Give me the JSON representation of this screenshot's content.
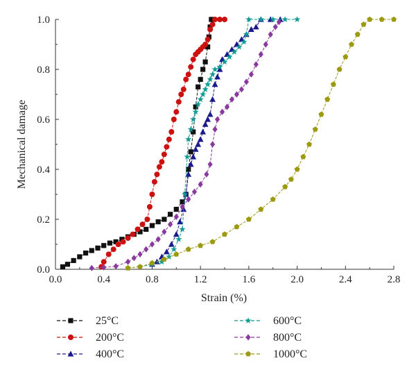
{
  "chart_data": {
    "type": "scatter",
    "xlabel": "Strain (%)",
    "ylabel": "Mechanical damage",
    "xlim": [
      0,
      2.8
    ],
    "ylim": [
      0,
      1.0
    ],
    "x_ticks": [
      "0.0",
      "0.4",
      "0.8",
      "1.2",
      "1.6",
      "2.0",
      "2.4",
      "2.8"
    ],
    "y_ticks": [
      "0.0",
      "0.2",
      "0.4",
      "0.6",
      "0.8",
      "1.0"
    ],
    "grid": false,
    "legend_position": "bottom",
    "series": [
      {
        "name": "25°C",
        "color": "#111111",
        "marker": "square",
        "points": [
          [
            0.06,
            0.01
          ],
          [
            0.1,
            0.02
          ],
          [
            0.15,
            0.035
          ],
          [
            0.2,
            0.05
          ],
          [
            0.25,
            0.065
          ],
          [
            0.3,
            0.075
          ],
          [
            0.35,
            0.085
          ],
          [
            0.4,
            0.095
          ],
          [
            0.45,
            0.105
          ],
          [
            0.5,
            0.11
          ],
          [
            0.55,
            0.12
          ],
          [
            0.6,
            0.13
          ],
          [
            0.65,
            0.14
          ],
          [
            0.7,
            0.15
          ],
          [
            0.75,
            0.16
          ],
          [
            0.8,
            0.175
          ],
          [
            0.85,
            0.19
          ],
          [
            0.9,
            0.2
          ],
          [
            0.95,
            0.22
          ],
          [
            1.0,
            0.24
          ],
          [
            1.05,
            0.27
          ],
          [
            1.08,
            0.3
          ],
          [
            1.1,
            0.4
          ],
          [
            1.12,
            0.47
          ],
          [
            1.14,
            0.55
          ],
          [
            1.16,
            0.65
          ],
          [
            1.18,
            0.73
          ],
          [
            1.2,
            0.76
          ],
          [
            1.22,
            0.8
          ],
          [
            1.24,
            0.83
          ],
          [
            1.26,
            0.89
          ],
          [
            1.27,
            0.93
          ],
          [
            1.28,
            0.97
          ],
          [
            1.29,
            1.0
          ],
          [
            1.3,
            1.0
          ]
        ]
      },
      {
        "name": "200°C",
        "color": "#cc1111",
        "marker": "circle",
        "points": [
          [
            0.38,
            0.01
          ],
          [
            0.4,
            0.03
          ],
          [
            0.44,
            0.06
          ],
          [
            0.48,
            0.08
          ],
          [
            0.52,
            0.1
          ],
          [
            0.56,
            0.11
          ],
          [
            0.6,
            0.125
          ],
          [
            0.64,
            0.14
          ],
          [
            0.68,
            0.16
          ],
          [
            0.72,
            0.18
          ],
          [
            0.76,
            0.2
          ],
          [
            0.78,
            0.25
          ],
          [
            0.8,
            0.3
          ],
          [
            0.82,
            0.35
          ],
          [
            0.84,
            0.38
          ],
          [
            0.86,
            0.41
          ],
          [
            0.88,
            0.43
          ],
          [
            0.9,
            0.46
          ],
          [
            0.92,
            0.49
          ],
          [
            0.94,
            0.52
          ],
          [
            0.96,
            0.55
          ],
          [
            0.98,
            0.6
          ],
          [
            1.0,
            0.63
          ],
          [
            1.02,
            0.67
          ],
          [
            1.04,
            0.7
          ],
          [
            1.06,
            0.72
          ],
          [
            1.08,
            0.76
          ],
          [
            1.1,
            0.78
          ],
          [
            1.12,
            0.81
          ],
          [
            1.14,
            0.84
          ],
          [
            1.16,
            0.86
          ],
          [
            1.18,
            0.87
          ],
          [
            1.2,
            0.88
          ],
          [
            1.22,
            0.89
          ],
          [
            1.24,
            0.9
          ],
          [
            1.26,
            0.92
          ],
          [
            1.28,
            0.96
          ],
          [
            1.3,
            0.98
          ],
          [
            1.32,
            1.0
          ],
          [
            1.36,
            1.0
          ],
          [
            1.4,
            1.0
          ]
        ]
      },
      {
        "name": "400°C",
        "color": "#1a1a8c",
        "marker": "triangle",
        "points": [
          [
            0.8,
            0.02
          ],
          [
            0.84,
            0.03
          ],
          [
            0.88,
            0.05
          ],
          [
            0.92,
            0.07
          ],
          [
            0.96,
            0.1
          ],
          [
            1.0,
            0.14
          ],
          [
            1.03,
            0.19
          ],
          [
            1.06,
            0.24
          ],
          [
            1.08,
            0.3
          ],
          [
            1.1,
            0.38
          ],
          [
            1.12,
            0.42
          ],
          [
            1.14,
            0.45
          ],
          [
            1.16,
            0.48
          ],
          [
            1.18,
            0.5
          ],
          [
            1.2,
            0.52
          ],
          [
            1.22,
            0.55
          ],
          [
            1.24,
            0.58
          ],
          [
            1.26,
            0.6
          ],
          [
            1.28,
            0.62
          ],
          [
            1.3,
            0.68
          ],
          [
            1.32,
            0.74
          ],
          [
            1.34,
            0.77
          ],
          [
            1.36,
            0.8
          ],
          [
            1.38,
            0.84
          ],
          [
            1.42,
            0.86
          ],
          [
            1.46,
            0.88
          ],
          [
            1.5,
            0.9
          ],
          [
            1.54,
            0.92
          ],
          [
            1.58,
            0.94
          ],
          [
            1.62,
            0.96
          ],
          [
            1.66,
            0.97
          ],
          [
            1.7,
            1.0
          ],
          [
            1.78,
            1.0
          ],
          [
            1.86,
            1.0
          ]
        ]
      },
      {
        "name": "600°C",
        "color": "#0f9a94",
        "marker": "star",
        "points": [
          [
            0.6,
            0.005
          ],
          [
            0.7,
            0.01
          ],
          [
            0.8,
            0.02
          ],
          [
            0.88,
            0.03
          ],
          [
            0.94,
            0.05
          ],
          [
            0.98,
            0.08
          ],
          [
            1.02,
            0.12
          ],
          [
            1.05,
            0.16
          ],
          [
            1.07,
            0.3
          ],
          [
            1.09,
            0.45
          ],
          [
            1.1,
            0.52
          ],
          [
            1.12,
            0.56
          ],
          [
            1.14,
            0.6
          ],
          [
            1.16,
            0.63
          ],
          [
            1.18,
            0.66
          ],
          [
            1.2,
            0.68
          ],
          [
            1.22,
            0.7
          ],
          [
            1.24,
            0.72
          ],
          [
            1.26,
            0.74
          ],
          [
            1.28,
            0.76
          ],
          [
            1.3,
            0.78
          ],
          [
            1.32,
            0.8
          ],
          [
            1.36,
            0.81
          ],
          [
            1.4,
            0.83
          ],
          [
            1.44,
            0.85
          ],
          [
            1.48,
            0.87
          ],
          [
            1.52,
            0.89
          ],
          [
            1.56,
            0.91
          ],
          [
            1.58,
            0.94
          ],
          [
            1.6,
            1.0
          ],
          [
            1.7,
            1.0
          ],
          [
            1.8,
            1.0
          ],
          [
            1.9,
            1.0
          ],
          [
            2.0,
            1.0
          ]
        ]
      },
      {
        "name": "800°C",
        "color": "#8a3a9e",
        "marker": "diamond",
        "points": [
          [
            0.3,
            0.005
          ],
          [
            0.4,
            0.008
          ],
          [
            0.5,
            0.012
          ],
          [
            0.6,
            0.03
          ],
          [
            0.65,
            0.045
          ],
          [
            0.7,
            0.06
          ],
          [
            0.75,
            0.08
          ],
          [
            0.8,
            0.1
          ],
          [
            0.85,
            0.12
          ],
          [
            0.9,
            0.15
          ],
          [
            0.95,
            0.18
          ],
          [
            1.0,
            0.21
          ],
          [
            1.05,
            0.25
          ],
          [
            1.1,
            0.28
          ],
          [
            1.15,
            0.31
          ],
          [
            1.2,
            0.34
          ],
          [
            1.25,
            0.38
          ],
          [
            1.28,
            0.42
          ],
          [
            1.3,
            0.5
          ],
          [
            1.32,
            0.56
          ],
          [
            1.34,
            0.6
          ],
          [
            1.38,
            0.63
          ],
          [
            1.42,
            0.65
          ],
          [
            1.46,
            0.68
          ],
          [
            1.5,
            0.7
          ],
          [
            1.54,
            0.72
          ],
          [
            1.58,
            0.75
          ],
          [
            1.62,
            0.78
          ],
          [
            1.66,
            0.82
          ],
          [
            1.7,
            0.86
          ],
          [
            1.74,
            0.9
          ],
          [
            1.78,
            0.94
          ],
          [
            1.82,
            0.97
          ],
          [
            1.85,
            0.99
          ]
        ]
      },
      {
        "name": "1000°C",
        "color": "#9c9a11",
        "marker": "pentagon",
        "points": [
          [
            0.6,
            0.005
          ],
          [
            0.7,
            0.01
          ],
          [
            0.8,
            0.025
          ],
          [
            0.9,
            0.04
          ],
          [
            1.0,
            0.06
          ],
          [
            1.1,
            0.08
          ],
          [
            1.2,
            0.095
          ],
          [
            1.3,
            0.11
          ],
          [
            1.4,
            0.14
          ],
          [
            1.5,
            0.17
          ],
          [
            1.6,
            0.2
          ],
          [
            1.7,
            0.24
          ],
          [
            1.8,
            0.28
          ],
          [
            1.9,
            0.33
          ],
          [
            1.95,
            0.36
          ],
          [
            2.0,
            0.4
          ],
          [
            2.05,
            0.45
          ],
          [
            2.1,
            0.5
          ],
          [
            2.15,
            0.56
          ],
          [
            2.2,
            0.62
          ],
          [
            2.25,
            0.68
          ],
          [
            2.3,
            0.74
          ],
          [
            2.35,
            0.8
          ],
          [
            2.4,
            0.85
          ],
          [
            2.45,
            0.9
          ],
          [
            2.5,
            0.94
          ],
          [
            2.55,
            0.98
          ],
          [
            2.6,
            1.0
          ],
          [
            2.7,
            1.0
          ],
          [
            2.8,
            1.0
          ]
        ]
      }
    ]
  }
}
